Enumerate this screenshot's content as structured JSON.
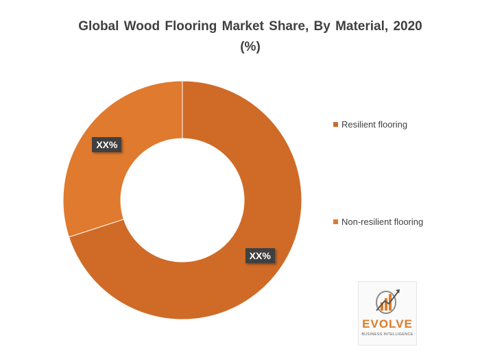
{
  "chart_data": {
    "type": "pie",
    "donut": true,
    "title_lines": [
      "Global  Wood  Flooring Market Share, By  Material, 2020",
      "(%)"
    ],
    "series": [
      {
        "name": "Resilient flooring",
        "label": "XX%",
        "color": "#cf6b27",
        "share": 0.7
      },
      {
        "name": "Non-resilient flooring",
        "label": "XX%",
        "color": "#e07a2e",
        "share": 0.3
      }
    ],
    "legend_position": "right"
  },
  "logo": {
    "name": "EVOLVE",
    "tagline": "BUSINESS INTELLIGENCE"
  }
}
